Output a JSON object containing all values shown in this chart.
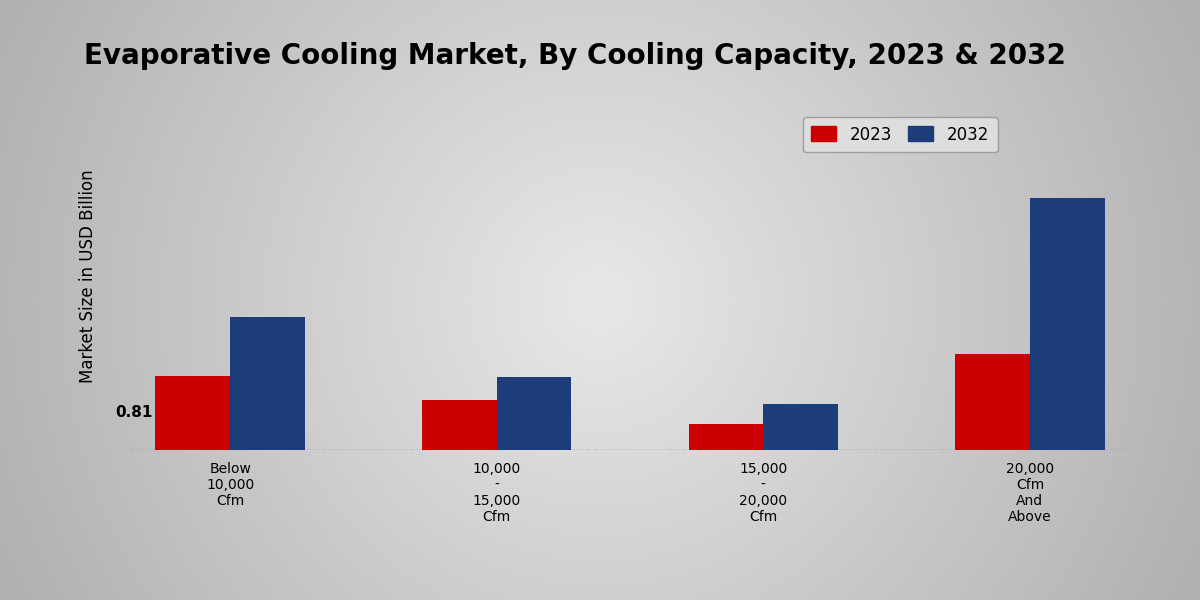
{
  "title": "Evaporative Cooling Market, By Cooling Capacity, 2023 & 2032",
  "ylabel": "Market Size in USD Billion",
  "categories": [
    "Below\n10,000\nCfm",
    "10,000\n-\n15,000\nCfm",
    "15,000\n-\n20,000\nCfm",
    "20,000\nCfm\nAnd\nAbove"
  ],
  "values_2023": [
    0.81,
    0.55,
    0.28,
    1.05
  ],
  "values_2032": [
    1.45,
    0.8,
    0.5,
    2.75
  ],
  "color_2023": "#cc0000",
  "color_2032": "#1c3d7a",
  "bar_width": 0.28,
  "ylim": [
    0,
    3.8
  ],
  "bg_center": "#e8e8e8",
  "bg_edge": "#b8b8b8",
  "legend_2023": "2023",
  "legend_2032": "2032",
  "bottom_strip_color": "#bb0000",
  "title_fontsize": 20,
  "ylabel_fontsize": 12,
  "tick_fontsize": 10,
  "legend_fontsize": 12
}
